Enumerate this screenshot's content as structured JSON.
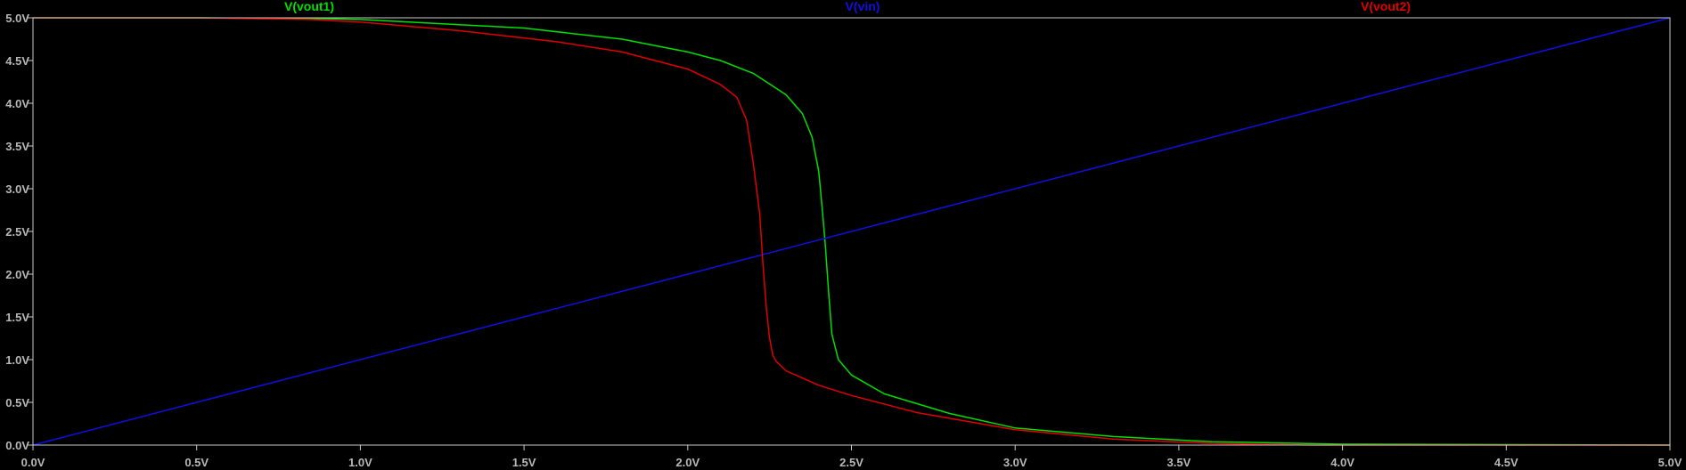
{
  "chart_data": {
    "type": "line",
    "xlim": [
      0,
      5
    ],
    "ylim": [
      0,
      5
    ],
    "grid": false,
    "background": "#000000",
    "axis_color": "#c8c8c8",
    "tick_color": "#b8b8b8",
    "x_ticks": [
      "0.0V",
      "0.5V",
      "1.0V",
      "1.5V",
      "2.0V",
      "2.5V",
      "3.0V",
      "3.5V",
      "4.0V",
      "4.5V",
      "5.0V"
    ],
    "y_ticks": [
      "0.0V",
      "0.5V",
      "1.0V",
      "1.5V",
      "2.0V",
      "2.5V",
      "3.0V",
      "3.5V",
      "4.0V",
      "4.5V",
      "5.0V"
    ],
    "series": [
      {
        "name": "V(vout1)",
        "color": "#00e000",
        "x": [
          0,
          0.5,
          0.9,
          1.0,
          1.5,
          1.8,
          2.0,
          2.1,
          2.2,
          2.3,
          2.35,
          2.38,
          2.4,
          2.41,
          2.42,
          2.43,
          2.44,
          2.46,
          2.5,
          2.6,
          2.8,
          3.0,
          3.3,
          3.6,
          4.0,
          5.0
        ],
        "y": [
          5.0,
          5.0,
          4.99,
          4.98,
          4.88,
          4.75,
          4.6,
          4.5,
          4.35,
          4.1,
          3.88,
          3.6,
          3.2,
          2.8,
          2.35,
          1.8,
          1.3,
          1.0,
          0.82,
          0.6,
          0.37,
          0.2,
          0.1,
          0.04,
          0.01,
          0.0
        ]
      },
      {
        "name": "V(vin)",
        "color": "#1010e0",
        "x": [
          0,
          5
        ],
        "y": [
          0,
          5
        ]
      },
      {
        "name": "V(vout2)",
        "color": "#e00000",
        "x": [
          0,
          0.5,
          0.85,
          1.0,
          1.3,
          1.6,
          1.8,
          2.0,
          2.1,
          2.15,
          2.18,
          2.2,
          2.22,
          2.23,
          2.24,
          2.25,
          2.26,
          2.27,
          2.3,
          2.4,
          2.5,
          2.7,
          3.0,
          3.3,
          3.6,
          3.9,
          5.0
        ],
        "y": [
          5.0,
          5.0,
          4.98,
          4.95,
          4.85,
          4.72,
          4.6,
          4.4,
          4.22,
          4.07,
          3.8,
          3.3,
          2.7,
          2.1,
          1.6,
          1.25,
          1.05,
          0.98,
          0.87,
          0.7,
          0.58,
          0.38,
          0.18,
          0.07,
          0.02,
          0.0,
          0.0
        ]
      }
    ]
  }
}
